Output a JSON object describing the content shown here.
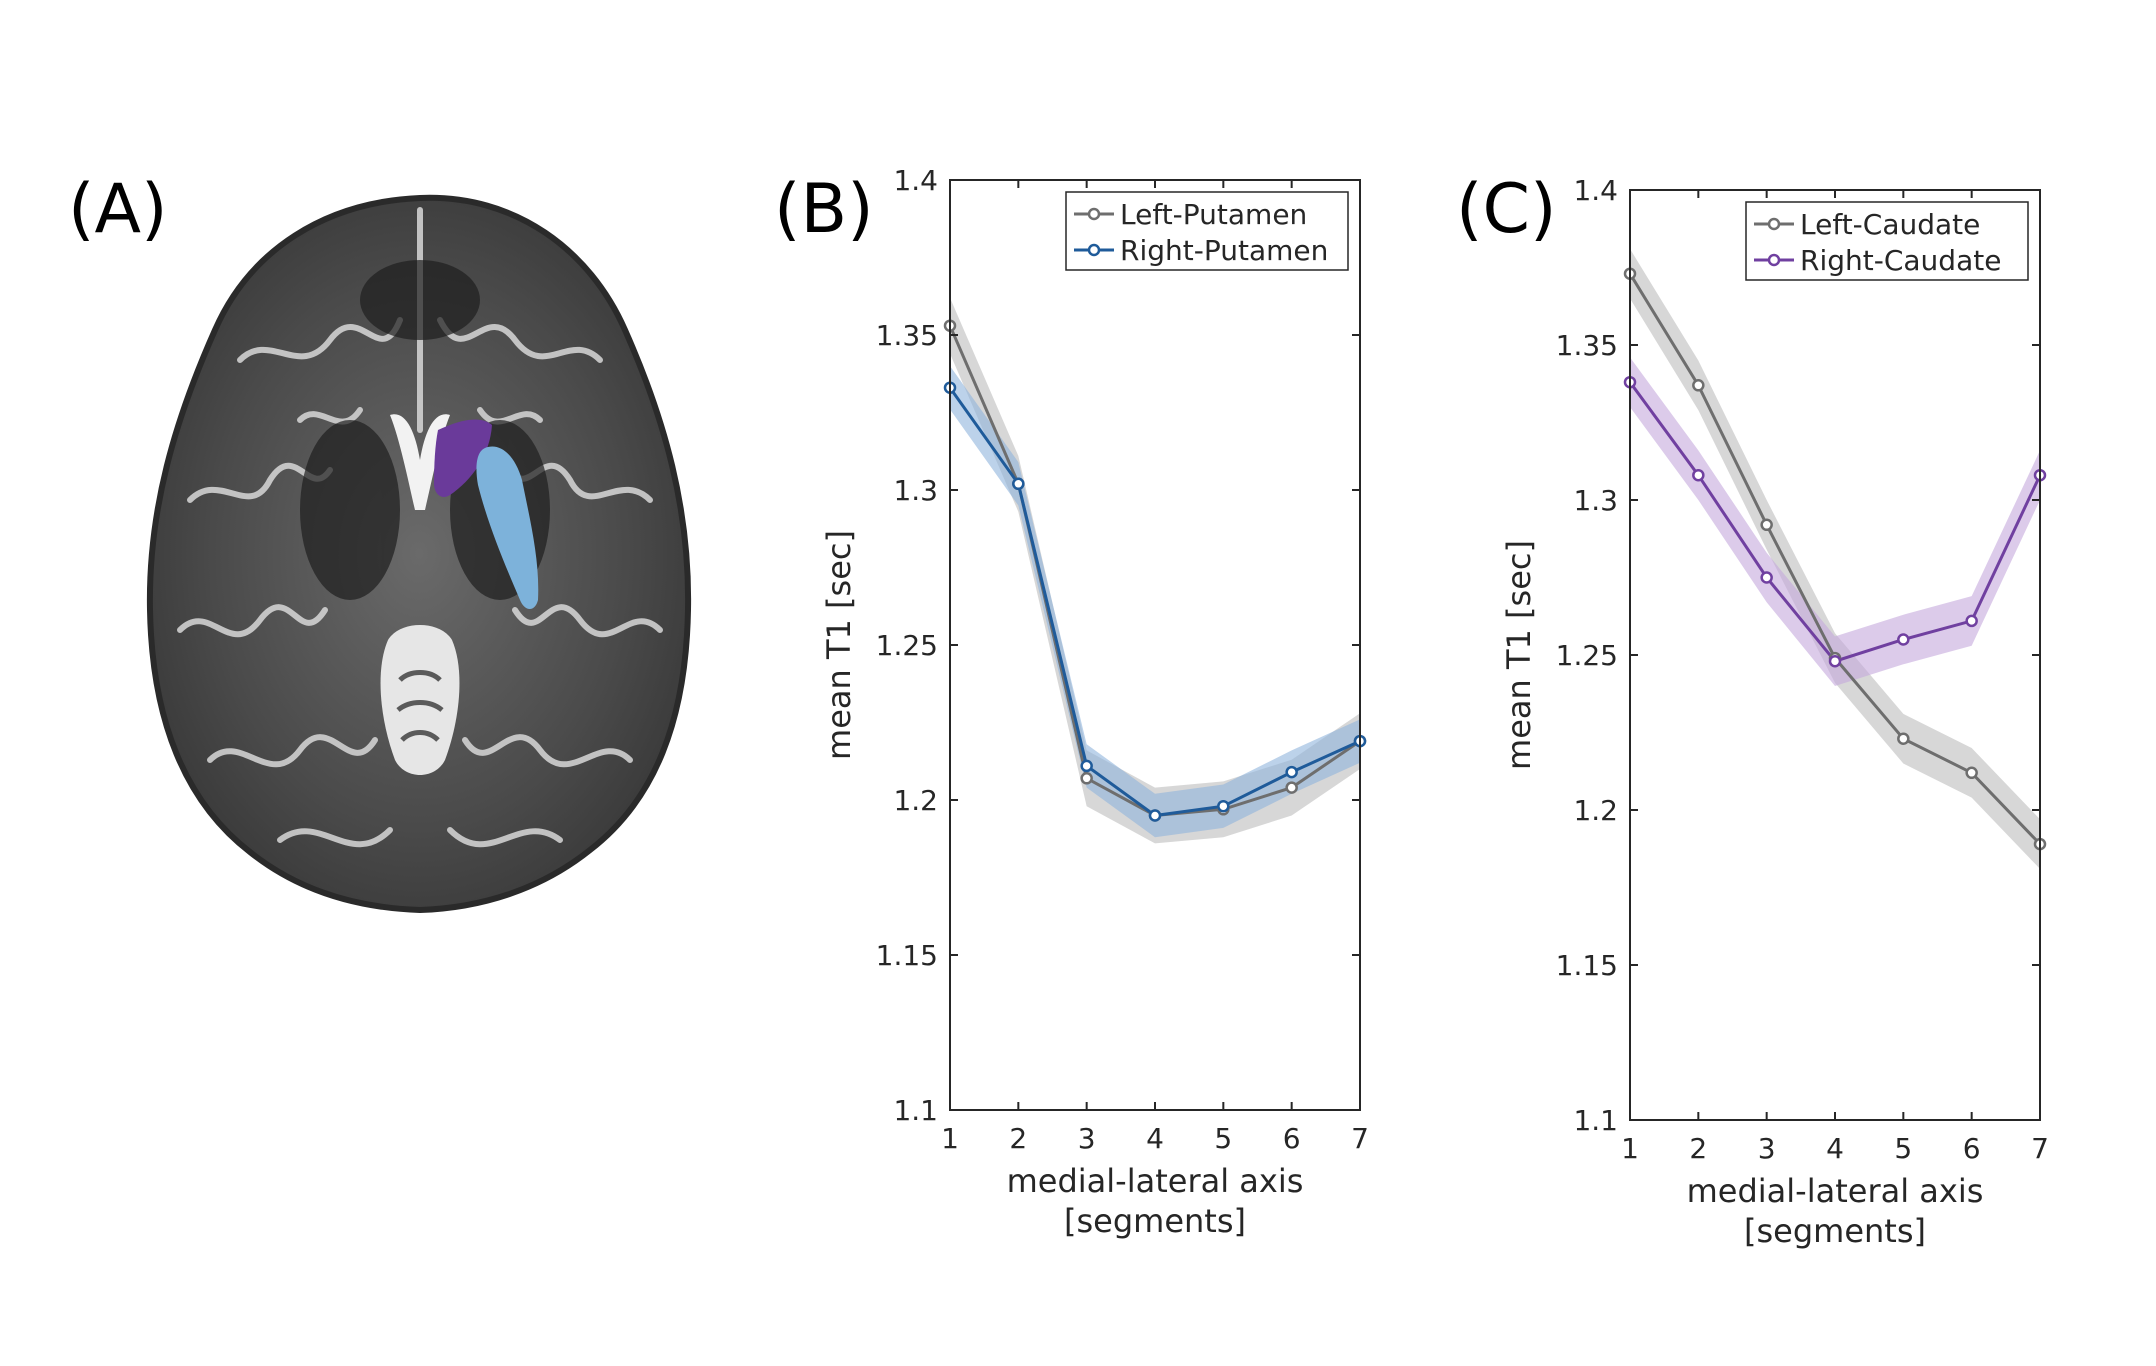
{
  "panels": {
    "a": {
      "label": "(A)"
    },
    "b": {
      "label": "(B)"
    },
    "c": {
      "label": "(C)"
    }
  },
  "brain_image": {
    "regions": [
      "Right-Caudate",
      "Right-Putamen"
    ],
    "colors": {
      "caudate": "#6a3a9a",
      "putamen": "#7db2da"
    }
  },
  "chart_data": [
    {
      "type": "line",
      "panel": "B",
      "xlabel": "medial-lateral axis",
      "xlabel2": "[segments]",
      "ylabel": "mean T1 [sec]",
      "ylim": [
        1.1,
        1.4
      ],
      "xlim": [
        1,
        7
      ],
      "yticks": [
        "1.1",
        "1.15",
        "1.2",
        "1.25",
        "1.3",
        "1.35",
        "1.4"
      ],
      "xticks": [
        "1",
        "2",
        "3",
        "4",
        "5",
        "6",
        "7"
      ],
      "legend_position": "top-right",
      "x": [
        1,
        2,
        3,
        4,
        5,
        6,
        7
      ],
      "series": [
        {
          "name": "Left-Putamen",
          "color": "#6e6e6e",
          "band": "#bdbdbd",
          "values": [
            1.353,
            1.302,
            1.207,
            1.195,
            1.197,
            1.204,
            1.219
          ],
          "err": 0.009
        },
        {
          "name": "Right-Putamen",
          "color": "#1f5b9a",
          "band": "#8fb4dc",
          "values": [
            1.333,
            1.302,
            1.211,
            1.195,
            1.198,
            1.209,
            1.219
          ],
          "err": 0.007
        }
      ]
    },
    {
      "type": "line",
      "panel": "C",
      "xlabel": "medial-lateral axis",
      "xlabel2": "[segments]",
      "ylabel": "mean T1 [sec]",
      "ylim": [
        1.1,
        1.4
      ],
      "xlim": [
        1,
        7
      ],
      "yticks": [
        "1.1",
        "1.15",
        "1.2",
        "1.25",
        "1.3",
        "1.35",
        "1.4"
      ],
      "xticks": [
        "1",
        "2",
        "3",
        "4",
        "5",
        "6",
        "7"
      ],
      "legend_position": "top-right",
      "x": [
        1,
        2,
        3,
        4,
        5,
        6,
        7
      ],
      "series": [
        {
          "name": "Left-Caudate",
          "color": "#6e6e6e",
          "band": "#bdbdbd",
          "values": [
            1.373,
            1.337,
            1.292,
            1.249,
            1.223,
            1.212,
            1.189
          ],
          "err": 0.008
        },
        {
          "name": "Right-Caudate",
          "color": "#7040a0",
          "band": "#c4a8dc",
          "values": [
            1.338,
            1.308,
            1.275,
            1.248,
            1.255,
            1.261,
            1.308
          ],
          "err": 0.008
        }
      ]
    }
  ]
}
